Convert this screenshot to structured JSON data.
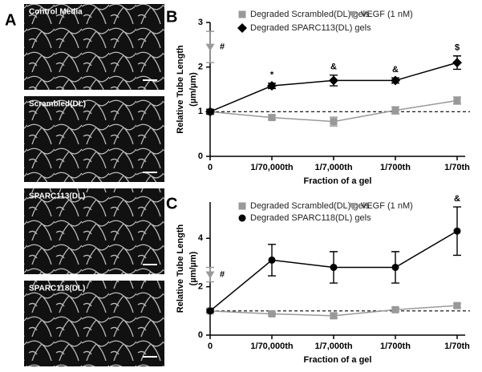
{
  "panels": {
    "A": {
      "label": "A",
      "images": [
        "Control Media",
        "Scrambled(DL)",
        "SPARC113(DL)",
        "SPARC118(DL)"
      ]
    }
  },
  "chart_data": [
    {
      "type": "line",
      "panel_label": "B",
      "y_label": [
        "Relative Tube Length",
        "(µm/µm)"
      ],
      "x_label": "Fraction of a gel",
      "categories": [
        "0",
        "1/70,000th",
        "1/7,000th",
        "1/700th",
        "1/70th"
      ],
      "ylim": [
        0,
        3
      ],
      "yticks": [
        0,
        1,
        2,
        3
      ],
      "reference_line": 1,
      "series": [
        {
          "name": "Degraded Scrambled(DL) gels",
          "color": "#999999",
          "marker": "square",
          "line": true,
          "values": [
            1.0,
            0.87,
            0.78,
            1.03,
            1.25
          ],
          "errors": [
            0.05,
            0.05,
            0.1,
            0.08,
            0.08
          ]
        },
        {
          "name": "VEGF (1 nM)",
          "color": "#999999",
          "marker": "triangle-down",
          "line": false,
          "values": [
            2.45,
            null,
            null,
            null,
            null
          ],
          "errors": [
            0.35,
            null,
            null,
            null,
            null
          ]
        },
        {
          "name": "Degraded SPARC113(DL) gels",
          "color": "#000000",
          "marker": "diamond",
          "line": true,
          "values": [
            1.0,
            1.58,
            1.7,
            1.7,
            2.1
          ],
          "errors": [
            0.05,
            0.06,
            0.12,
            0.06,
            0.15
          ]
        }
      ],
      "annotations": [
        {
          "text": "#",
          "x": "0"
        },
        {
          "text": "*",
          "x": "1/70,000th"
        },
        {
          "text": "&",
          "x": "1/7,000th"
        },
        {
          "text": "&",
          "x": "1/700th"
        },
        {
          "text": "$",
          "x": "1/70th"
        }
      ]
    },
    {
      "type": "line",
      "panel_label": "C",
      "y_label": [
        "Relative Tube Length",
        "(µm/µm)"
      ],
      "x_label": "Fraction of a gel",
      "categories": [
        "0",
        "1/70,000th",
        "1/7,000th",
        "1/700th",
        "1/70th"
      ],
      "ylim": [
        0,
        5.5
      ],
      "yticks": [
        0,
        2,
        4
      ],
      "reference_line": 1,
      "series": [
        {
          "name": "Degraded Scrambled(DL) gels",
          "color": "#999999",
          "marker": "square",
          "line": true,
          "values": [
            1.0,
            0.88,
            0.8,
            1.05,
            1.22
          ],
          "errors": [
            0.05,
            0.05,
            0.1,
            0.08,
            0.08
          ]
        },
        {
          "name": "VEGF (1 nM)",
          "color": "#999999",
          "marker": "triangle-down",
          "line": false,
          "values": [
            2.5,
            null,
            null,
            null,
            null
          ],
          "errors": [
            0.3,
            null,
            null,
            null,
            null
          ]
        },
        {
          "name": "Degraded SPARC118(DL) gels",
          "color": "#000000",
          "marker": "circle",
          "line": true,
          "values": [
            1.0,
            3.1,
            2.8,
            2.8,
            4.3
          ],
          "errors": [
            0.05,
            0.65,
            0.65,
            0.65,
            1.0
          ]
        }
      ],
      "annotations": [
        {
          "text": "#",
          "x": "0"
        },
        {
          "text": "&",
          "x": "1/70th"
        }
      ]
    }
  ]
}
